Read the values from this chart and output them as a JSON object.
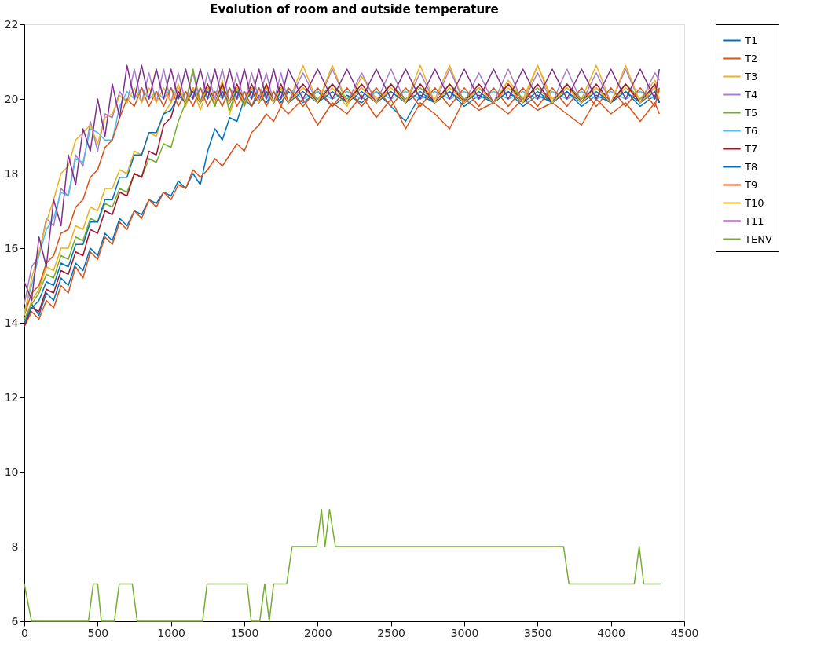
{
  "chart_data": {
    "type": "line",
    "title": "Evolution of room and outside temperature",
    "x": [
      0,
      50,
      100,
      150,
      200,
      250,
      300,
      350,
      400,
      450,
      500,
      550,
      600,
      650,
      700,
      750,
      800,
      850,
      900,
      950,
      1000,
      1050,
      1100,
      1150,
      1200,
      1250,
      1300,
      1350,
      1400,
      1450,
      1500,
      1550,
      1600,
      1650,
      1700,
      1750,
      1800,
      1900,
      2000,
      2100,
      2200,
      2300,
      2400,
      2500,
      2600,
      2700,
      2800,
      2900,
      3000,
      3100,
      3200,
      3300,
      3400,
      3500,
      3600,
      3700,
      3800,
      3900,
      4000,
      4100,
      4200,
      4300,
      4330
    ],
    "series": [
      {
        "name": "T1",
        "color": "#0072bd",
        "values": [
          14.0,
          14.5,
          14.2,
          14.8,
          14.6,
          15.2,
          15.0,
          15.6,
          15.4,
          16.0,
          15.8,
          16.4,
          16.2,
          16.8,
          16.6,
          17.0,
          16.9,
          17.3,
          17.2,
          17.5,
          17.4,
          17.8,
          17.6,
          18.0,
          17.7,
          18.6,
          19.2,
          18.9,
          19.5,
          19.4,
          20.0,
          19.8,
          20.1,
          19.9,
          20.2,
          19.9,
          20.2,
          19.9,
          20.2,
          19.8,
          20.1,
          19.9,
          20.2,
          19.8,
          19.4,
          20.1,
          19.9,
          20.2,
          19.8,
          20.1,
          19.9,
          20.2,
          19.8,
          20.1,
          19.9,
          20.2,
          19.8,
          20.1,
          19.9,
          20.2,
          19.8,
          20.1,
          19.9
        ]
      },
      {
        "name": "T2",
        "color": "#d95319",
        "values": [
          13.9,
          14.3,
          14.1,
          14.6,
          14.4,
          15.0,
          14.8,
          15.5,
          15.2,
          15.9,
          15.7,
          16.3,
          16.1,
          16.7,
          16.5,
          17.0,
          16.8,
          17.3,
          17.1,
          17.5,
          17.3,
          17.7,
          17.6,
          18.1,
          17.9,
          18.1,
          18.4,
          18.2,
          18.5,
          18.8,
          18.6,
          19.1,
          19.3,
          19.6,
          19.4,
          19.8,
          19.6,
          20.0,
          19.3,
          19.9,
          19.6,
          20.1,
          19.5,
          20.0,
          19.2,
          19.9,
          19.6,
          19.2,
          20.0,
          19.7,
          19.9,
          19.6,
          20.0,
          19.7,
          19.9,
          19.6,
          19.3,
          20.0,
          19.6,
          19.9,
          19.4,
          19.9,
          19.6
        ]
      },
      {
        "name": "T3",
        "color": "#edb120",
        "values": [
          14.0,
          14.6,
          14.9,
          15.5,
          15.4,
          16.0,
          16.0,
          16.6,
          16.5,
          17.1,
          17.0,
          17.6,
          17.6,
          18.1,
          18.0,
          18.6,
          18.5,
          19.1,
          19.0,
          19.6,
          19.9,
          20.4,
          19.8,
          20.3,
          19.7,
          20.3,
          19.8,
          20.5,
          19.6,
          20.2,
          19.8,
          20.3,
          19.9,
          20.4,
          19.9,
          20.3,
          19.9,
          20.9,
          19.9,
          20.3,
          19.8,
          20.6,
          20.0,
          20.2,
          19.9,
          20.4,
          20.0,
          20.9,
          19.9,
          20.3,
          19.9,
          20.5,
          20.0,
          20.9,
          20.0,
          20.3,
          20.0,
          20.9,
          19.9,
          20.3,
          20.0,
          20.5,
          20.2
        ]
      },
      {
        "name": "T4",
        "color": "#a77fc7",
        "values": [
          14.5,
          15.5,
          15.8,
          16.8,
          16.6,
          17.6,
          17.4,
          18.5,
          18.2,
          19.4,
          18.6,
          19.6,
          19.5,
          20.2,
          19.9,
          20.8,
          19.9,
          20.7,
          19.9,
          20.8,
          19.9,
          20.7,
          19.9,
          20.7,
          19.9,
          20.7,
          20.0,
          20.8,
          19.9,
          20.7,
          19.9,
          20.7,
          20.0,
          20.7,
          19.9,
          20.7,
          19.9,
          20.7,
          19.9,
          20.8,
          19.9,
          20.7,
          19.9,
          20.8,
          19.9,
          20.7,
          19.9,
          20.8,
          19.9,
          20.7,
          19.9,
          20.8,
          19.9,
          20.7,
          19.9,
          20.8,
          19.9,
          20.7,
          19.9,
          20.8,
          19.9,
          20.7,
          20.5
        ]
      },
      {
        "name": "T5",
        "color": "#77ac30",
        "values": [
          14.1,
          14.5,
          14.8,
          15.3,
          15.2,
          15.8,
          15.7,
          16.3,
          16.2,
          16.8,
          16.7,
          17.2,
          17.1,
          17.6,
          17.5,
          18.0,
          17.9,
          18.4,
          18.3,
          18.8,
          18.7,
          19.4,
          19.9,
          20.8,
          19.9,
          20.3,
          19.8,
          20.4,
          19.7,
          20.3,
          19.8,
          20.3,
          19.9,
          20.4,
          19.9,
          20.3,
          19.9,
          20.3,
          20.0,
          20.4,
          20.0,
          20.3,
          19.9,
          20.4,
          20.0,
          20.3,
          19.9,
          20.4,
          20.0,
          20.3,
          19.9,
          20.4,
          20.0,
          20.3,
          19.9,
          20.4,
          20.0,
          20.3,
          19.9,
          20.4,
          20.0,
          20.3,
          20.2
        ]
      },
      {
        "name": "T6",
        "color": "#4dbeee",
        "values": [
          14.3,
          15.0,
          15.8,
          16.5,
          16.8,
          17.5,
          17.4,
          18.4,
          18.3,
          19.2,
          19.1,
          18.9,
          18.9,
          19.8,
          20.2,
          20.0,
          20.3,
          20.0,
          20.2,
          20.0,
          20.3,
          20.0,
          20.2,
          20.0,
          20.3,
          20.0,
          20.2,
          20.0,
          20.3,
          20.0,
          20.2,
          20.0,
          20.3,
          20.0,
          20.2,
          20.0,
          20.3,
          20.0,
          20.2,
          20.0,
          20.2,
          20.0,
          20.2,
          20.0,
          20.2,
          20.0,
          20.2,
          20.0,
          20.2,
          20.0,
          20.2,
          20.0,
          20.2,
          20.0,
          20.2,
          20.0,
          20.2,
          20.0,
          20.2,
          20.0,
          20.2,
          20.0,
          20.2
        ]
      },
      {
        "name": "T7",
        "color": "#a2142f",
        "values": [
          13.9,
          14.4,
          14.3,
          14.9,
          14.8,
          15.4,
          15.3,
          15.9,
          15.8,
          16.5,
          16.4,
          17.0,
          16.9,
          17.5,
          17.4,
          18.0,
          17.9,
          18.6,
          18.5,
          19.3,
          19.5,
          20.2,
          19.9,
          20.3,
          19.9,
          20.4,
          19.9,
          20.4,
          19.9,
          20.4,
          19.9,
          20.4,
          19.9,
          20.4,
          19.9,
          20.4,
          19.9,
          20.4,
          19.9,
          20.4,
          19.9,
          20.4,
          19.9,
          20.4,
          19.9,
          20.4,
          19.9,
          20.4,
          19.9,
          20.4,
          19.9,
          20.4,
          19.9,
          20.4,
          19.9,
          20.4,
          19.9,
          20.4,
          19.9,
          20.4,
          19.9,
          20.4,
          19.9
        ]
      },
      {
        "name": "T8",
        "color": "#0072bd",
        "values": [
          14.0,
          14.4,
          14.6,
          15.1,
          15.0,
          15.6,
          15.5,
          16.1,
          16.1,
          16.7,
          16.7,
          17.3,
          17.3,
          17.9,
          17.9,
          18.5,
          18.5,
          19.1,
          19.1,
          19.6,
          19.7,
          20.1,
          19.9,
          20.2,
          19.9,
          20.2,
          19.9,
          20.2,
          19.9,
          20.2,
          19.9,
          20.2,
          19.9,
          20.2,
          19.9,
          20.2,
          19.9,
          20.2,
          19.9,
          20.2,
          19.9,
          20.2,
          19.9,
          20.2,
          19.9,
          20.2,
          19.9,
          20.2,
          19.9,
          20.2,
          19.9,
          20.2,
          19.9,
          20.2,
          19.9,
          20.2,
          19.9,
          20.2,
          19.9,
          20.2,
          19.9,
          20.2,
          19.9
        ]
      },
      {
        "name": "T9",
        "color": "#d95319",
        "values": [
          14.2,
          14.8,
          15.0,
          15.6,
          15.8,
          16.4,
          16.5,
          17.1,
          17.3,
          17.9,
          18.1,
          18.7,
          18.9,
          19.5,
          20.0,
          19.8,
          20.3,
          19.8,
          20.2,
          19.8,
          20.3,
          19.8,
          20.2,
          19.8,
          20.3,
          19.8,
          20.2,
          19.8,
          20.3,
          19.8,
          20.2,
          19.8,
          20.3,
          19.8,
          20.2,
          19.8,
          20.3,
          19.8,
          20.3,
          19.8,
          20.3,
          19.8,
          20.3,
          19.8,
          20.3,
          19.8,
          20.3,
          19.8,
          20.3,
          19.8,
          20.3,
          19.8,
          20.3,
          19.8,
          20.3,
          19.8,
          20.3,
          19.8,
          20.3,
          19.8,
          20.3,
          19.8,
          20.3
        ]
      },
      {
        "name": "T10",
        "color": "#edb120",
        "values": [
          14.2,
          15.2,
          15.9,
          16.7,
          17.3,
          18.0,
          18.2,
          18.9,
          19.1,
          19.3,
          18.8,
          19.5,
          19.6,
          20.1,
          19.9,
          20.3,
          19.9,
          20.3,
          19.9,
          20.3,
          19.9,
          20.3,
          19.9,
          20.3,
          19.9,
          20.3,
          19.9,
          20.3,
          19.9,
          20.3,
          19.9,
          20.3,
          19.9,
          20.3,
          19.9,
          20.3,
          19.9,
          20.3,
          19.9,
          20.9,
          19.9,
          20.3,
          19.9,
          20.3,
          19.9,
          20.9,
          19.9,
          20.3,
          19.9,
          20.3,
          19.9,
          20.3,
          19.9,
          20.9,
          19.9,
          20.3,
          19.9,
          20.3,
          19.9,
          20.9,
          19.9,
          20.3,
          20.0
        ]
      },
      {
        "name": "T11",
        "color": "#7e2f8e",
        "values": [
          15.1,
          14.6,
          16.3,
          15.5,
          17.3,
          16.6,
          18.5,
          17.7,
          19.2,
          18.6,
          20.0,
          19.0,
          20.4,
          19.5,
          20.9,
          20.0,
          20.9,
          20.0,
          20.8,
          20.0,
          20.8,
          20.0,
          20.8,
          20.0,
          20.8,
          20.0,
          20.8,
          20.0,
          20.8,
          20.0,
          20.8,
          20.0,
          20.8,
          20.0,
          20.8,
          20.0,
          20.8,
          20.0,
          20.8,
          20.0,
          20.8,
          20.0,
          20.8,
          20.0,
          20.8,
          20.0,
          20.8,
          20.0,
          20.8,
          20.0,
          20.8,
          20.0,
          20.8,
          20.0,
          20.8,
          20.0,
          20.8,
          20.0,
          20.8,
          20.0,
          20.8,
          20.0,
          20.8
        ]
      },
      {
        "name": "TENV",
        "color": "#77ac30",
        "x": [
          0,
          49,
          437,
          470,
          500,
          525,
          614,
          647,
          736,
          770,
          1215,
          1246,
          1519,
          1547,
          1605,
          1639,
          1670,
          1700,
          1789,
          1826,
          1994,
          2026,
          2050,
          2081,
          2121,
          3677,
          3714,
          4159,
          4193,
          4224,
          4340
        ],
        "values": [
          7,
          6,
          6,
          7,
          7,
          6,
          6,
          7,
          7,
          6,
          6,
          7,
          7,
          6,
          6,
          7,
          6,
          7,
          7,
          8,
          8,
          9,
          8,
          9,
          8,
          8,
          7,
          7,
          8,
          7,
          7
        ]
      }
    ],
    "xlim": [
      0,
      4500
    ],
    "xticks": [
      0,
      500,
      1000,
      1500,
      2000,
      2500,
      3000,
      3500,
      4000,
      4500
    ],
    "ylim": [
      6,
      22
    ],
    "yticks": [
      6,
      8,
      10,
      12,
      14,
      16,
      18,
      20,
      22
    ],
    "grid": false,
    "legend": "top right",
    "marker": "none",
    "line_style": "solid"
  }
}
